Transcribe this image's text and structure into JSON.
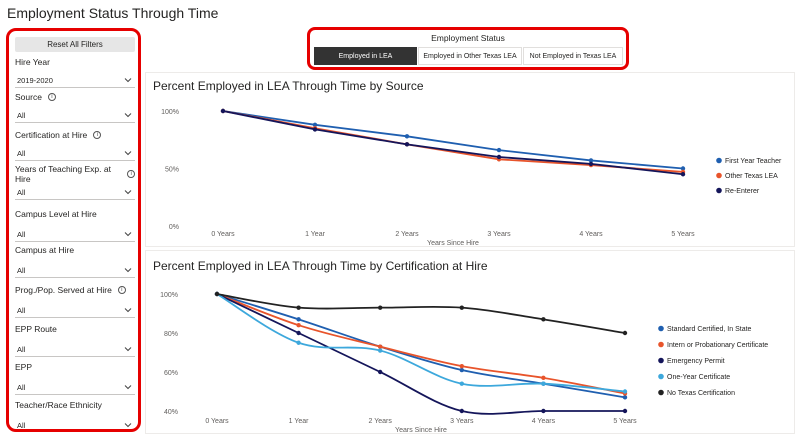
{
  "page": {
    "title": "Employment Status Through Time"
  },
  "filters": {
    "reset_label": "Reset All Filters",
    "items": [
      {
        "label": "Hire Year",
        "value": "2019-2020",
        "info": false
      },
      {
        "label": "Source",
        "value": "All",
        "info": true
      },
      {
        "label": "Certification at Hire",
        "value": "All",
        "info": true
      },
      {
        "label": "Years of Teaching Exp. at Hire",
        "value": "All",
        "info": true
      },
      {
        "label": "Campus Level at Hire",
        "value": "All",
        "info": false
      },
      {
        "label": "Campus at Hire",
        "value": "All",
        "info": false
      },
      {
        "label": "Prog./Pop. Served at Hire",
        "value": "All",
        "info": true
      },
      {
        "label": "EPP Route",
        "value": "All",
        "info": false
      },
      {
        "label": "EPP",
        "value": "All",
        "info": false
      },
      {
        "label": "Teacher/Race Ethnicity",
        "value": "All",
        "info": false
      }
    ]
  },
  "slicer": {
    "title": "Employment Status",
    "options": [
      "Employed in LEA",
      "Employed in Other Texas LEA",
      "Not Employed in Texas LEA"
    ],
    "selected": "Employed in LEA"
  },
  "chart_data": [
    {
      "type": "line",
      "title": "Percent Employed in LEA Through Time by Source",
      "xlabel": "Years Since Hire",
      "ylabel": "",
      "categories": [
        "0 Years",
        "1 Year",
        "2 Years",
        "3 Years",
        "4 Years",
        "5 Years"
      ],
      "yticks": [
        "0%",
        "50%",
        "100%"
      ],
      "ylim": [
        0,
        100
      ],
      "legend_position": "right",
      "series": [
        {
          "name": "First Year Teacher",
          "color": "#1f5fb0",
          "values": [
            100,
            88,
            78,
            66,
            57,
            50
          ]
        },
        {
          "name": "Other Texas LEA",
          "color": "#e8542b",
          "values": [
            100,
            85,
            71,
            58,
            53,
            47
          ]
        },
        {
          "name": "Re-Enterer",
          "color": "#14155a",
          "values": [
            100,
            84,
            71,
            60,
            54,
            45
          ]
        }
      ]
    },
    {
      "type": "line",
      "title": "Percent Employed in LEA Through Time by Certification at Hire",
      "xlabel": "Years Since Hire",
      "ylabel": "",
      "categories": [
        "0 Years",
        "1 Year",
        "2 Years",
        "3 Years",
        "4 Years",
        "5 Years"
      ],
      "yticks": [
        "40%",
        "60%",
        "80%",
        "100%"
      ],
      "ylim": [
        40,
        100
      ],
      "legend_position": "right",
      "series": [
        {
          "name": "Standard Certified, In State",
          "color": "#1f5fb0",
          "values": [
            100,
            87,
            73,
            61,
            54,
            47
          ]
        },
        {
          "name": "Intern or Probationary Certificate",
          "color": "#e8542b",
          "values": [
            100,
            84,
            73,
            63,
            57,
            49
          ]
        },
        {
          "name": "Emergency Permit",
          "color": "#14155a",
          "values": [
            100,
            80,
            60,
            40,
            40,
            40
          ]
        },
        {
          "name": "One-Year Certificate",
          "color": "#3da8dc",
          "values": [
            100,
            75,
            71,
            54,
            54,
            50
          ]
        },
        {
          "name": "No Texas Certification",
          "color": "#222222",
          "values": [
            100,
            93,
            93,
            93,
            87,
            80
          ]
        }
      ]
    }
  ]
}
